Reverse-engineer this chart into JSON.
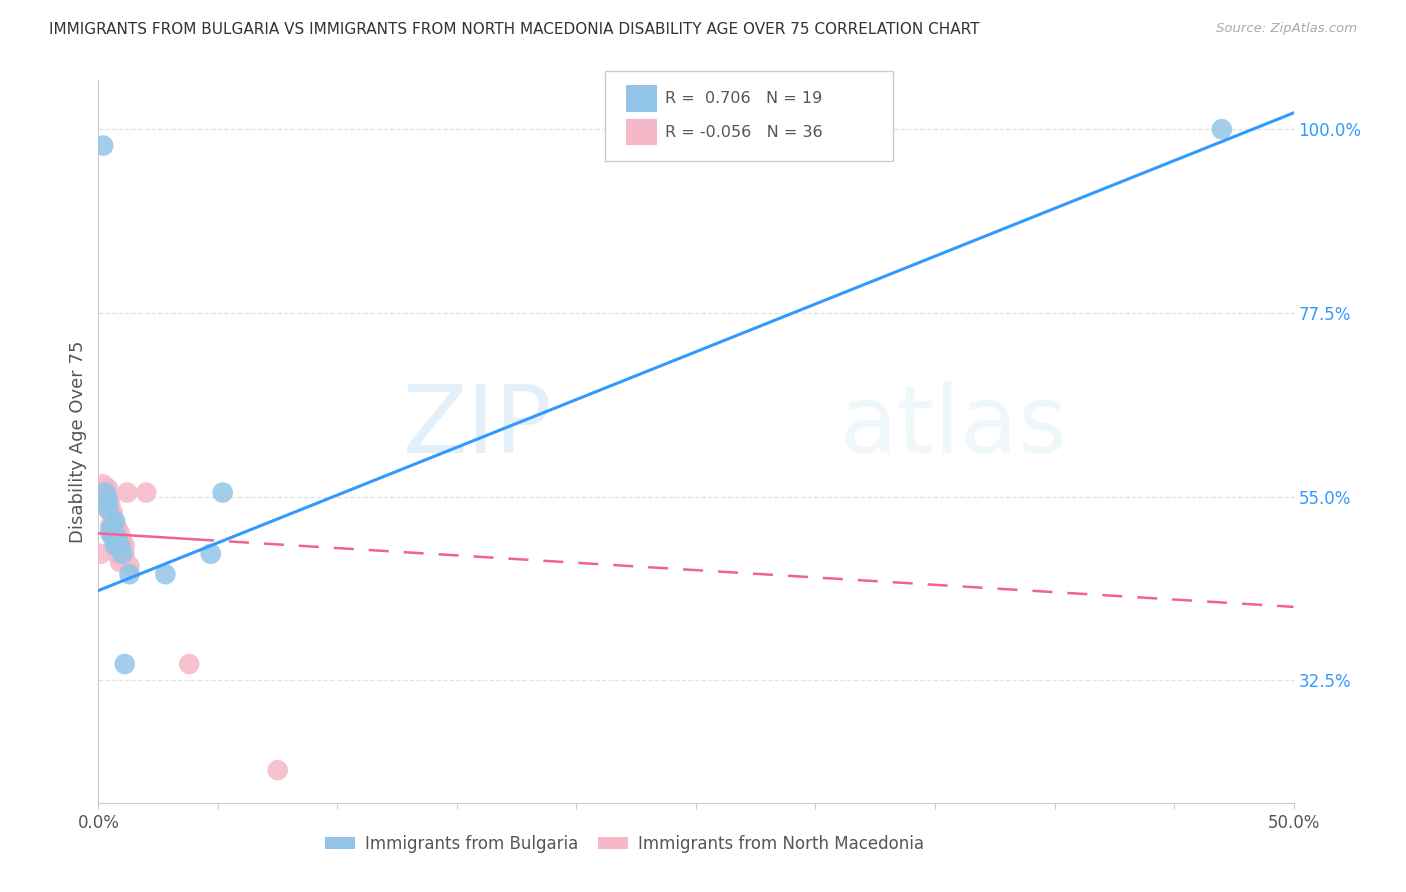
{
  "title": "IMMIGRANTS FROM BULGARIA VS IMMIGRANTS FROM NORTH MACEDONIA DISABILITY AGE OVER 75 CORRELATION CHART",
  "source": "Source: ZipAtlas.com",
  "ylabel": "Disability Age Over 75",
  "xlim": [
    0.0,
    0.5
  ],
  "ylim": [
    0.175,
    1.06
  ],
  "right_yticks": [
    1.0,
    0.775,
    0.55,
    0.325
  ],
  "right_yticklabels": [
    "100.0%",
    "77.5%",
    "55.0%",
    "32.5%"
  ],
  "bulgaria_color": "#92c5e8",
  "macedonia_color": "#f5b8c8",
  "bulgaria_line_color": "#3399ff",
  "macedonia_line_color": "#f06292",
  "watermark_zip": "ZIP",
  "watermark_atlas": "atlas",
  "legend_r_bulgaria": "R =  0.706",
  "legend_n_bulgaria": "N = 19",
  "legend_r_macedonia": "R = -0.056",
  "legend_n_macedonia": "N = 36",
  "bul_line_x0": 0.0,
  "bul_line_y0": 0.435,
  "bul_line_x1": 0.5,
  "bul_line_y1": 1.02,
  "mac_line_x0": 0.0,
  "mac_line_y0": 0.505,
  "mac_line_x1": 0.5,
  "mac_line_y1": 0.415,
  "bulgaria_x": [
    0.002,
    0.003,
    0.004,
    0.004,
    0.005,
    0.005,
    0.006,
    0.006,
    0.007,
    0.007,
    0.008,
    0.009,
    0.01,
    0.011,
    0.013,
    0.028,
    0.047,
    0.052,
    0.47
  ],
  "bulgaria_y": [
    0.98,
    0.555,
    0.545,
    0.535,
    0.51,
    0.505,
    0.515,
    0.5,
    0.52,
    0.49,
    0.5,
    0.49,
    0.48,
    0.345,
    0.455,
    0.455,
    0.48,
    0.555,
    1.0
  ],
  "macedonia_x": [
    0.001,
    0.002,
    0.002,
    0.003,
    0.003,
    0.004,
    0.004,
    0.004,
    0.005,
    0.005,
    0.005,
    0.006,
    0.006,
    0.006,
    0.007,
    0.007,
    0.007,
    0.007,
    0.008,
    0.008,
    0.008,
    0.008,
    0.009,
    0.009,
    0.009,
    0.009,
    0.01,
    0.01,
    0.01,
    0.011,
    0.011,
    0.012,
    0.013,
    0.02,
    0.038,
    0.075
  ],
  "macedonia_y": [
    0.48,
    0.565,
    0.54,
    0.555,
    0.545,
    0.56,
    0.55,
    0.535,
    0.54,
    0.53,
    0.515,
    0.53,
    0.515,
    0.505,
    0.515,
    0.51,
    0.5,
    0.49,
    0.51,
    0.5,
    0.49,
    0.48,
    0.505,
    0.495,
    0.48,
    0.47,
    0.495,
    0.49,
    0.48,
    0.49,
    0.48,
    0.555,
    0.465,
    0.555,
    0.345,
    0.215
  ],
  "grid_color": "#dddddd",
  "grid_linestyle": "--",
  "background_color": "#ffffff"
}
